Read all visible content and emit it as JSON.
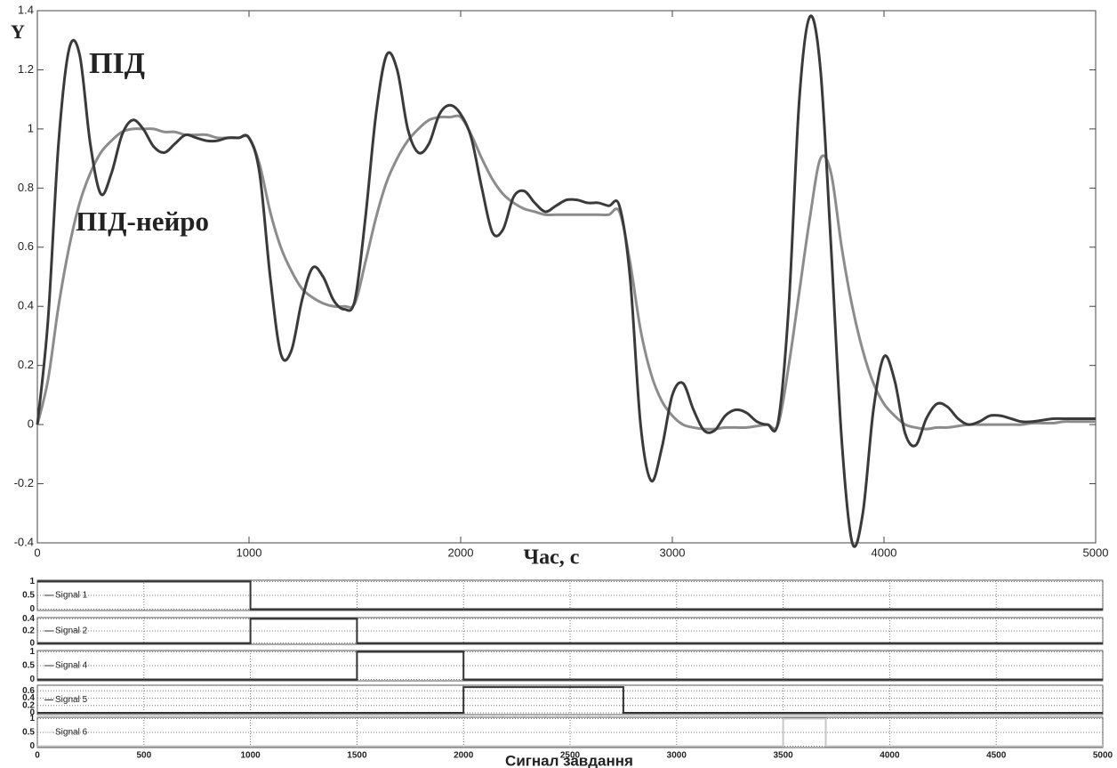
{
  "chart_data": [
    {
      "type": "line",
      "ylabel": "Y",
      "xlabel": "Час, с",
      "xlim": [
        0,
        5000
      ],
      "xticks": [
        0,
        1000,
        2000,
        3000,
        4000,
        5000
      ],
      "ylim": [
        -0.4,
        1.4
      ],
      "yticks": [
        -0.4,
        -0.2,
        0,
        0.2,
        0.4,
        0.6,
        0.8,
        1,
        1.2,
        1.4
      ],
      "x": [
        0,
        50,
        100,
        150,
        200,
        250,
        300,
        350,
        400,
        450,
        500,
        550,
        600,
        650,
        700,
        750,
        800,
        850,
        900,
        950,
        1000,
        1050,
        1100,
        1150,
        1200,
        1250,
        1300,
        1350,
        1400,
        1450,
        1500,
        1550,
        1600,
        1650,
        1700,
        1750,
        1800,
        1850,
        1900,
        1950,
        2000,
        2050,
        2100,
        2150,
        2200,
        2250,
        2300,
        2350,
        2400,
        2450,
        2500,
        2550,
        2600,
        2650,
        2700,
        2750,
        2800,
        2850,
        2900,
        2950,
        3000,
        3050,
        3100,
        3150,
        3200,
        3250,
        3300,
        3350,
        3400,
        3450,
        3500,
        3550,
        3600,
        3650,
        3700,
        3750,
        3800,
        3850,
        3900,
        3950,
        4000,
        4050,
        4100,
        4150,
        4200,
        4250,
        4300,
        4350,
        4400,
        4450,
        4500,
        4550,
        4600,
        4650,
        4700,
        4750,
        4800,
        4850,
        4900,
        4950,
        5000
      ],
      "series": [
        {
          "name": "ПІД",
          "color": "#3a3a3a",
          "values": [
            0,
            0.35,
            0.95,
            1.27,
            1.25,
            0.95,
            0.78,
            0.85,
            0.98,
            1.03,
            1.0,
            0.94,
            0.92,
            0.95,
            0.98,
            0.97,
            0.96,
            0.96,
            0.97,
            0.97,
            0.97,
            0.85,
            0.5,
            0.24,
            0.25,
            0.42,
            0.53,
            0.5,
            0.42,
            0.39,
            0.42,
            0.7,
            1.05,
            1.25,
            1.2,
            1.0,
            0.92,
            0.95,
            1.05,
            1.08,
            1.05,
            0.97,
            0.8,
            0.65,
            0.66,
            0.77,
            0.79,
            0.75,
            0.72,
            0.74,
            0.76,
            0.76,
            0.75,
            0.75,
            0.74,
            0.74,
            0.5,
            0.0,
            -0.19,
            -0.08,
            0.1,
            0.14,
            0.05,
            -0.02,
            -0.02,
            0.03,
            0.05,
            0.04,
            0.01,
            0.0,
            0.01,
            0.4,
            1.1,
            1.38,
            1.2,
            0.6,
            -0.05,
            -0.4,
            -0.3,
            0.05,
            0.23,
            0.15,
            -0.03,
            -0.07,
            0.02,
            0.07,
            0.06,
            0.02,
            0.0,
            0.01,
            0.03,
            0.03,
            0.02,
            0.01,
            0.01,
            0.015,
            0.02,
            0.02,
            0.02,
            0.02,
            0.02
          ]
        },
        {
          "name": "ПІД-нейро",
          "color": "#8c8c8c",
          "values": [
            0,
            0.15,
            0.4,
            0.6,
            0.75,
            0.85,
            0.92,
            0.96,
            0.99,
            1.0,
            1.0,
            1.0,
            0.99,
            0.99,
            0.98,
            0.98,
            0.98,
            0.97,
            0.97,
            0.97,
            0.97,
            0.88,
            0.72,
            0.6,
            0.52,
            0.46,
            0.43,
            0.41,
            0.4,
            0.4,
            0.41,
            0.55,
            0.7,
            0.82,
            0.9,
            0.96,
            1.0,
            1.03,
            1.04,
            1.04,
            1.04,
            0.98,
            0.9,
            0.83,
            0.78,
            0.75,
            0.73,
            0.72,
            0.71,
            0.71,
            0.71,
            0.71,
            0.71,
            0.71,
            0.71,
            0.72,
            0.55,
            0.32,
            0.17,
            0.08,
            0.03,
            0.0,
            -0.01,
            -0.015,
            -0.015,
            -0.01,
            -0.01,
            -0.01,
            -0.005,
            0.0,
            0.0,
            0.2,
            0.45,
            0.7,
            0.9,
            0.85,
            0.6,
            0.4,
            0.25,
            0.14,
            0.07,
            0.03,
            0.0,
            -0.01,
            -0.015,
            -0.01,
            -0.01,
            -0.005,
            0,
            0,
            0,
            0,
            0,
            0,
            0.005,
            0.005,
            0.005,
            0.01,
            0.01,
            0.01,
            0.01
          ]
        }
      ]
    },
    {
      "type": "step",
      "xlabel": "Сигнал завдання",
      "xlim": [
        0,
        5000
      ],
      "xticks": [
        0,
        500,
        1000,
        1500,
        2000,
        2500,
        3000,
        3500,
        4000,
        4500,
        5000
      ],
      "series": [
        {
          "name": "Signal 1",
          "color": "#333333",
          "ylim": [
            -0.05,
            1.05
          ],
          "yticks": [
            0,
            0.5,
            1
          ],
          "x": [
            0,
            1000,
            1000,
            5000
          ],
          "values": [
            1,
            1,
            0,
            0
          ]
        },
        {
          "name": "Signal 2",
          "color": "#333333",
          "ylim": [
            -0.02,
            0.42
          ],
          "yticks": [
            0,
            0.2,
            0.4
          ],
          "x": [
            0,
            1000,
            1000,
            1500,
            1500,
            5000
          ],
          "values": [
            0,
            0,
            0.4,
            0.4,
            0,
            0
          ]
        },
        {
          "name": "Signal 4",
          "color": "#333333",
          "ylim": [
            -0.05,
            1.05
          ],
          "yticks": [
            0,
            0.5,
            1
          ],
          "x": [
            0,
            1500,
            1500,
            2000,
            2000,
            5000
          ],
          "values": [
            0,
            0,
            1,
            1,
            0,
            0
          ]
        },
        {
          "name": "Signal 5",
          "color": "#333333",
          "ylim": [
            -0.05,
            0.75
          ],
          "yticks": [
            0,
            0.2,
            0.4,
            0.6
          ],
          "x": [
            0,
            2000,
            2000,
            2750,
            2750,
            5000
          ],
          "values": [
            0,
            0,
            0.7,
            0.7,
            0,
            0
          ]
        },
        {
          "name": "Signal 6",
          "color": "#c8c8c8",
          "ylim": [
            -0.05,
            1.05
          ],
          "yticks": [
            0,
            0.5,
            1
          ],
          "x": [
            0,
            3500,
            3500,
            3700,
            3700,
            5000
          ],
          "values": [
            0,
            0,
            1,
            1,
            0,
            0
          ]
        }
      ]
    }
  ]
}
